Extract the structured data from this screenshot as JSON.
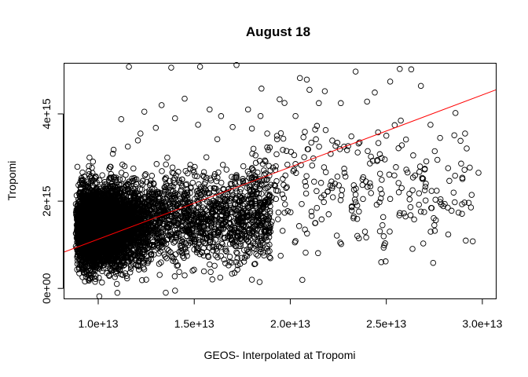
{
  "chart_data": {
    "type": "scatter",
    "title": "August 18",
    "xlabel": "GEOS- Interpolated at Tropomi",
    "ylabel": "Tropomi",
    "xlim": [
      8200000000000.0,
      30700000000000.0
    ],
    "ylim": [
      -230000000000000.0,
      5170000000000000.0
    ],
    "x_ticks": [
      10000000000000.0,
      15000000000000.0,
      20000000000000.0,
      25000000000000.0,
      30000000000000.0
    ],
    "x_tick_labels": [
      "1.0e+13",
      "1.5e+13",
      "2.0e+13",
      "2.5e+13",
      "3.0e+13"
    ],
    "y_ticks": [
      0,
      2000000000000000.0,
      4000000000000000.0
    ],
    "y_tick_labels": [
      "0e+00",
      "2e+15",
      "4e+15"
    ],
    "grid": false,
    "point_style": "open-circle",
    "regression_line": {
      "color": "#ff0000",
      "points": [
        [
          8200000000000.0,
          830000000000000.0
        ],
        [
          30700000000000.0,
          4550000000000000.0
        ]
      ]
    },
    "distribution": {
      "dense_core_x": [
        8800000000000.0,
        13500000000000.0
      ],
      "dense_core_y": [
        200000000000000.0,
        2900000000000000.0
      ],
      "x_range": [
        8800000000000.0,
        29800000000000.0
      ]
    },
    "points": [
      [
        11600000000000.0,
        5080000000000000.0
      ],
      [
        13800000000000.0,
        5060000000000000.0
      ],
      [
        15300000000000.0,
        5080000000000000.0
      ],
      [
        17200000000000.0,
        5120000000000000.0
      ],
      [
        25700000000000.0,
        5030000000000000.0
      ],
      [
        26300000000000.0,
        5020000000000000.0
      ],
      [
        23400000000000.0,
        4970000000000000.0
      ],
      [
        20500000000000.0,
        4820000000000000.0
      ],
      [
        21800000000000.0,
        4520000000000000.0
      ],
      [
        24400000000000.0,
        4490000000000000.0
      ],
      [
        26800000000000.0,
        4640000000000000.0
      ],
      [
        25200000000000.0,
        4740000000000000.0
      ],
      [
        18500000000000.0,
        4580000000000000.0
      ],
      [
        21000000000000.0,
        4550000000000000.0
      ],
      [
        24000000000000.0,
        4280000000000000.0
      ],
      [
        28600000000000.0,
        4020000000000000.0
      ],
      [
        27300000000000.0,
        3750000000000000.0
      ],
      [
        29100000000000.0,
        3550000000000000.0
      ],
      [
        27800000000000.0,
        3450000000000000.0
      ],
      [
        29800000000000.0,
        2650000000000000.0
      ],
      [
        29500000000000.0,
        1080000000000000.0
      ],
      [
        27500000000000.0,
        1450000000000000.0
      ],
      [
        28200000000000.0,
        1850000000000000.0
      ],
      [
        26700000000000.0,
        1920000000000000.0
      ],
      [
        26000000000000.0,
        1650000000000000.0
      ],
      [
        24800000000000.0,
        1450000000000000.0
      ],
      [
        24500000000000.0,
        1920000000000000.0
      ],
      [
        25200000000000.0,
        2050000000000000.0
      ],
      [
        23200000000000.0,
        1880000000000000.0
      ],
      [
        22600000000000.0,
        1050000000000000.0
      ],
      [
        22000000000000.0,
        1700000000000000.0
      ],
      [
        20800000000000.0,
        820000000000000.0
      ],
      [
        19500000000000.0,
        750000000000000.0
      ],
      [
        18000000000000.0,
        200000000000000.0
      ],
      [
        21600000000000.0,
        2420000000000000.0
      ],
      [
        23800000000000.0,
        2550000000000000.0
      ],
      [
        25500000000000.0,
        2780000000000000.0
      ],
      [
        26400000000000.0,
        3050000000000000.0
      ],
      [
        24200000000000.0,
        3020000000000000.0
      ],
      [
        22800000000000.0,
        3250000000000000.0
      ],
      [
        21200000000000.0,
        2980000000000000.0
      ],
      [
        20200000000000.0,
        2720000000000000.0
      ],
      [
        19800000000000.0,
        3150000000000000.0
      ],
      [
        18800000000000.0,
        3550000000000000.0
      ],
      [
        19700000000000.0,
        4250000000000000.0
      ],
      [
        17800000000000.0,
        4100000000000000.0
      ],
      [
        17000000000000.0,
        3700000000000000.0
      ],
      [
        16200000000000.0,
        3420000000000000.0
      ],
      [
        25000000000000.0,
        3500000000000000.0
      ],
      [
        27000000000000.0,
        2250000000000000.0
      ],
      [
        25800000000000.0,
        2300000000000000.0
      ],
      [
        23400000000000.0,
        2150000000000000.0
      ],
      [
        19200000000000.0,
        2350000000000000.0
      ],
      [
        18200000000000.0,
        2500000000000000.0
      ],
      [
        17500000000000.0,
        1100000000000000.0
      ],
      [
        16500000000000.0,
        1500000000000000.0
      ],
      [
        15800000000000.0,
        550000000000000.0
      ],
      [
        14500000000000.0,
        300000000000000.0
      ],
      [
        12500000000000.0,
        200000000000000.0
      ],
      [
        11000000000000.0,
        -100000000000000.0
      ],
      [
        14000000000000.0,
        -50000000000000.0
      ],
      [
        13300000000000.0,
        4200000000000000.0
      ],
      [
        14500000000000.0,
        4350000000000000.0
      ],
      [
        15800000000000.0,
        4100000000000000.0
      ],
      [
        12400000000000.0,
        4050000000000000.0
      ],
      [
        11200000000000.0,
        3880000000000000.0
      ],
      [
        14000000000000.0,
        3900000000000000.0
      ],
      [
        15200000000000.0,
        3750000000000000.0
      ],
      [
        13000000000000.0,
        3680000000000000.0
      ],
      [
        12200000000000.0,
        3550000000000000.0
      ],
      [
        16400000000000.0,
        3950000000000000.0
      ],
      [
        10800000000000.0,
        3180000000000000.0
      ]
    ]
  }
}
